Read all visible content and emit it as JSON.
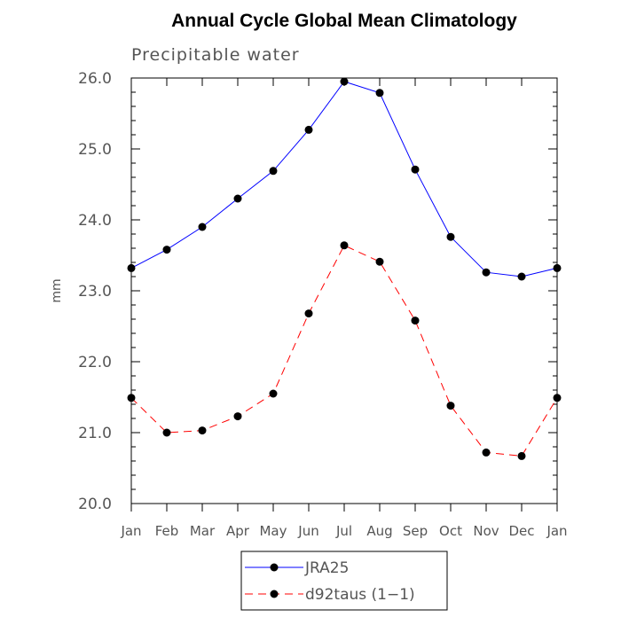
{
  "chart_data": {
    "type": "line",
    "title": "Annual Cycle Global Mean Climatology",
    "subtitle": "Precipitable water",
    "xlabel": "",
    "ylabel": "mm",
    "categories": [
      "Jan",
      "Feb",
      "Mar",
      "Apr",
      "May",
      "Jun",
      "Jul",
      "Aug",
      "Sep",
      "Oct",
      "Nov",
      "Dec",
      "Jan"
    ],
    "ylim": [
      20.0,
      26.0
    ],
    "yticks": [
      "20.0",
      "21.0",
      "22.0",
      "23.0",
      "24.0",
      "25.0",
      "26.0"
    ],
    "grid": false,
    "legend_position": "bottom",
    "series": [
      {
        "name": "JRA25",
        "color": "#0000ff",
        "dash": "solid",
        "values": [
          23.32,
          23.58,
          23.9,
          24.3,
          24.69,
          25.27,
          25.95,
          25.79,
          24.71,
          23.76,
          23.26,
          23.2,
          23.32
        ]
      },
      {
        "name": "d92taus (1−1)",
        "color": "#ff0000",
        "dash": "dashed",
        "values": [
          21.49,
          21.0,
          21.03,
          21.23,
          21.55,
          22.68,
          23.64,
          23.41,
          22.58,
          21.38,
          20.72,
          20.67,
          21.49
        ]
      }
    ]
  }
}
